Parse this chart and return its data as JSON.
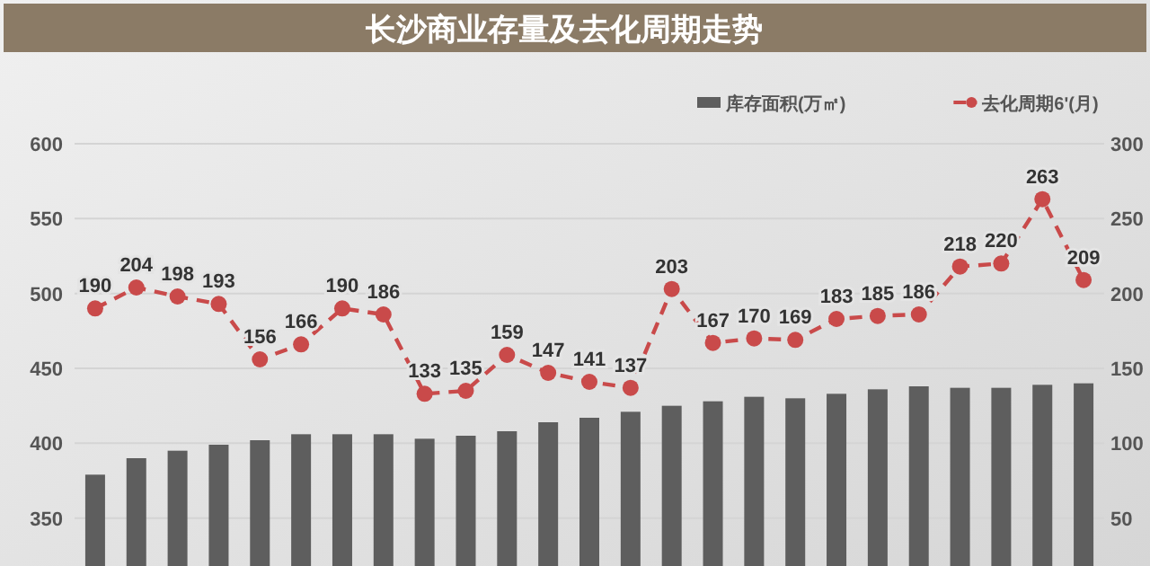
{
  "chart_data": {
    "type": "bar",
    "title": "长沙商业存量及去化周期走势",
    "categories": [
      null,
      null,
      null,
      null,
      null,
      null,
      null,
      null,
      null,
      null,
      null,
      null,
      null,
      null,
      null,
      null,
      null,
      null,
      null,
      null,
      null,
      null,
      null,
      null,
      null
    ],
    "series": [
      {
        "name": "库存面积(万㎡)",
        "color": "#5e5e5e",
        "values": [
          379,
          390,
          395,
          399,
          402,
          406,
          406,
          406,
          403,
          405,
          408,
          414,
          417,
          421,
          425,
          428,
          431,
          430,
          433,
          436,
          438,
          437,
          437,
          439,
          440
        ]
      },
      {
        "name": "去化周期6'(月)",
        "type": "line",
        "axis": "y2",
        "color": "#c94a4a",
        "marker": "circle",
        "line_style": "dashed",
        "data_labels": true,
        "values": [
          190,
          204,
          198,
          193,
          156,
          166,
          190,
          186,
          133,
          135,
          159,
          147,
          141,
          137,
          203,
          167,
          170,
          169,
          183,
          185,
          186,
          218,
          220,
          263,
          209
        ]
      }
    ],
    "ylim": [
      318,
      600
    ],
    "yticks": [
      350,
      400,
      450,
      500,
      550,
      600
    ],
    "y2lim": [
      18,
      300
    ],
    "y2ticks": [
      50,
      100,
      150,
      200,
      250,
      300
    ],
    "grid": "y",
    "legend": "top right"
  }
}
